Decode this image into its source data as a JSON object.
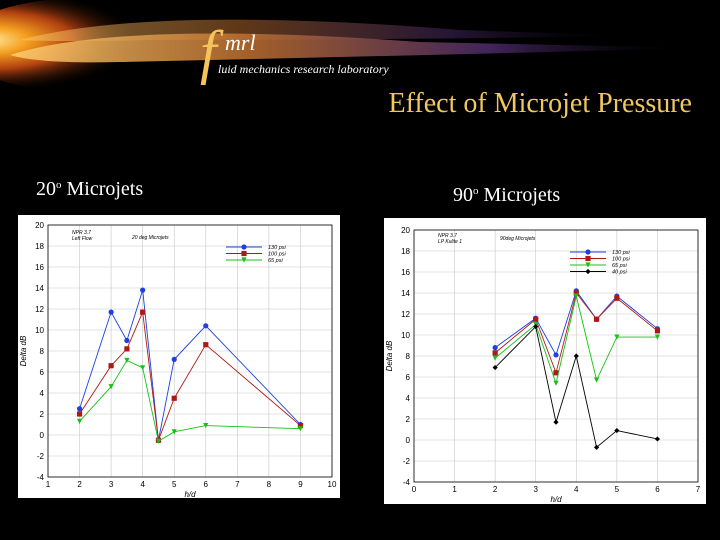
{
  "header": {
    "logo_f": "f",
    "logo_rest": "mrl",
    "logo_subtitle": "luid mechanics research laboratory",
    "title": "Effect of Microjet Pressure"
  },
  "panels": [
    {
      "title_num": "20",
      "title_deg": "o",
      "title_rest": " Microjets"
    },
    {
      "title_num": "90",
      "title_deg": "o",
      "title_rest": " Microjets"
    }
  ],
  "chart_data": [
    {
      "type": "line",
      "title": "",
      "xlabel": "h/d",
      "ylabel": "Delta dB",
      "xlim": [
        1,
        10
      ],
      "ylim": [
        -4,
        20
      ],
      "xticks": [
        1,
        2,
        3,
        4,
        5,
        6,
        7,
        8,
        9,
        10
      ],
      "yticks": [
        -4,
        -2,
        0,
        2,
        4,
        6,
        8,
        10,
        12,
        14,
        16,
        18,
        20
      ],
      "grid": true,
      "legend_position": "top-right",
      "annotations": [
        "NPR 3.7",
        "Left Flow",
        "20 deg Microjets"
      ],
      "series": [
        {
          "name": "130 psi",
          "color": "#1f3fe0",
          "marker": "circle",
          "x": [
            2,
            3,
            3.5,
            4,
            4.5,
            5,
            6,
            9
          ],
          "y": [
            2.5,
            11.7,
            9.0,
            13.8,
            -0.5,
            7.2,
            10.4,
            1.0
          ]
        },
        {
          "name": "100 psi",
          "color": "#b01818",
          "marker": "square",
          "x": [
            2,
            3,
            3.5,
            4,
            4.5,
            5,
            6,
            9
          ],
          "y": [
            2.0,
            6.6,
            8.2,
            11.7,
            -0.5,
            3.5,
            8.6,
            0.9
          ]
        },
        {
          "name": "65 psi",
          "color": "#18c018",
          "marker": "triangle",
          "x": [
            2,
            3,
            3.5,
            4,
            4.5,
            5,
            6,
            9
          ],
          "y": [
            1.3,
            4.6,
            7.1,
            6.4,
            -0.6,
            0.3,
            0.9,
            0.6
          ]
        }
      ]
    },
    {
      "type": "line",
      "title": "",
      "xlabel": "h/d",
      "ylabel": "Delta dB",
      "xlim": [
        0,
        7
      ],
      "ylim": [
        -4,
        20
      ],
      "xticks": [
        0,
        1,
        2,
        3,
        4,
        5,
        6,
        7
      ],
      "yticks": [
        -4,
        -2,
        0,
        2,
        4,
        6,
        8,
        10,
        12,
        14,
        16,
        18,
        20
      ],
      "grid": true,
      "legend_position": "top-right",
      "annotations": [
        "NPR 3.7",
        "LP Kulite 1",
        "90deg Microjets"
      ],
      "series": [
        {
          "name": "130 psi",
          "color": "#1f3fe0",
          "marker": "circle",
          "x": [
            2,
            3,
            3.5,
            4,
            4.5,
            5,
            6
          ],
          "y": [
            8.8,
            11.6,
            8.1,
            14.2,
            11.5,
            13.7,
            10.6
          ]
        },
        {
          "name": "100 psi",
          "color": "#b01818",
          "marker": "square",
          "x": [
            2,
            3,
            3.5,
            4,
            4.5,
            5,
            6
          ],
          "y": [
            8.3,
            11.5,
            6.4,
            14.0,
            11.5,
            13.5,
            10.4
          ]
        },
        {
          "name": "65 psi",
          "color": "#18c018",
          "marker": "triangle",
          "x": [
            2,
            3,
            3.5,
            4,
            4.5,
            5,
            6
          ],
          "y": [
            7.8,
            11.0,
            5.4,
            13.7,
            5.7,
            9.8,
            9.8
          ]
        },
        {
          "name": "40 psi",
          "color": "#000000",
          "marker": "diamond",
          "x": [
            2,
            3,
            3.5,
            4,
            4.5,
            5,
            6
          ],
          "y": [
            6.9,
            10.8,
            1.7,
            8.0,
            -0.7,
            0.9,
            0.1
          ]
        }
      ]
    }
  ]
}
